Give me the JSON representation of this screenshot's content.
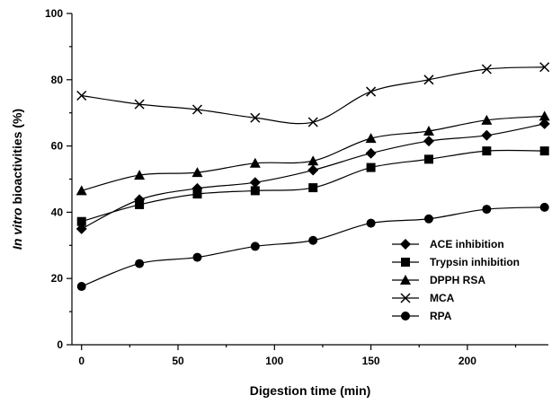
{
  "chart_data": {
    "type": "line",
    "title": "",
    "xlabel": "Digestion time (min)",
    "ylabel_italic": "In vitro",
    "ylabel_rest": " bioactivities (%)",
    "xlim": [
      -5,
      242
    ],
    "ylim": [
      0,
      100
    ],
    "xticks": [
      0,
      50,
      100,
      150,
      200
    ],
    "yticks": [
      0,
      20,
      40,
      60,
      80,
      100
    ],
    "grid": false,
    "legend_position": "bottom-right",
    "x": [
      0,
      30,
      60,
      90,
      120,
      150,
      180,
      210,
      240
    ],
    "series": [
      {
        "name": "ACE inhibition",
        "marker": "diamond",
        "values": [
          35.0,
          43.8,
          47.2,
          49.0,
          52.7,
          57.8,
          61.5,
          63.2,
          66.7
        ]
      },
      {
        "name": "Trypsin inhibition",
        "marker": "square",
        "values": [
          37.2,
          42.3,
          45.5,
          46.5,
          47.4,
          53.5,
          56.0,
          58.5,
          58.5
        ]
      },
      {
        "name": "DPPH RSA",
        "marker": "triangle",
        "values": [
          46.5,
          51.2,
          52.0,
          54.8,
          55.5,
          62.3,
          64.5,
          67.8,
          69.0
        ]
      },
      {
        "name": "MCA",
        "marker": "cross",
        "values": [
          75.2,
          72.6,
          71.0,
          68.5,
          67.2,
          76.4,
          80.0,
          83.2,
          83.8
        ]
      },
      {
        "name": "RPA",
        "marker": "circle",
        "values": [
          17.6,
          24.5,
          26.4,
          29.7,
          31.5,
          36.7,
          38.0,
          40.9,
          41.5
        ]
      }
    ]
  }
}
